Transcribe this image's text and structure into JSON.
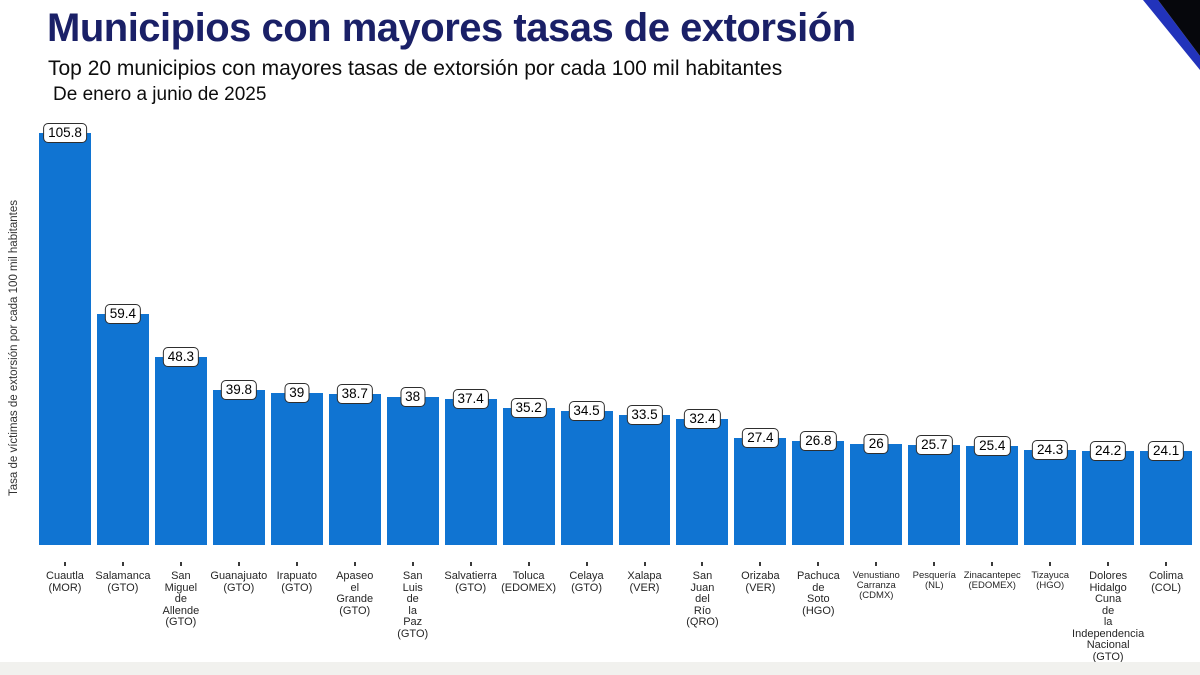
{
  "header": {
    "title": "Municipios con mayores tasas de extorsión",
    "subtitle": "Top 20 municipios con mayores tasas de extorsión por cada 100 mil habitantes",
    "period": "De enero a junio de 2025"
  },
  "colors": {
    "title_navy": "#1a2067",
    "bar_blue": "#1074d2",
    "corner_black": "#06070c",
    "corner_blue": "#2233bb",
    "tick_text": "#262626",
    "bottom_strip": "#f1f1ee"
  },
  "chart_data": {
    "type": "bar",
    "title": "Municipios con mayores tasas de extorsión",
    "subtitle": "Top 20 municipios con mayores tasas de extorsión por cada 100 mil habitantes",
    "period": "De enero a junio de 2025",
    "xlabel": "",
    "ylabel": "Tasa de víctimas de extorsión por cada 100 mil habitantes",
    "ylim": [
      0,
      110
    ],
    "grid": false,
    "legend": false,
    "bar_color": "#1074d2",
    "categories": [
      "Cuautla (MOR)",
      "Salamanca (GTO)",
      "San Miguel de Allende (GTO)",
      "Guanajuato (GTO)",
      "Irapuato (GTO)",
      "Apaseo el Grande (GTO)",
      "San Luis de la Paz (GTO)",
      "Salvatierra (GTO)",
      "Toluca (EDOMEX)",
      "Celaya (GTO)",
      "Xalapa (VER)",
      "San Juan del Río (QRO)",
      "Orizaba (VER)",
      "Pachuca de Soto (HGO)",
      "Venustiano Carranza (CDMX)",
      "Pesquería (NL)",
      "Zinacantepec (EDOMEX)",
      "Tizayuca (HGO)",
      "Dolores Hidalgo Cuna de la Independencia Nacional (GTO)",
      "Colima (COL)"
    ],
    "tick_labels": [
      "Cuautla\n(MOR)",
      "Salamanca\n(GTO)",
      "San\nMiguel\nde\nAllende\n(GTO)",
      "Guanajuato\n(GTO)",
      "Irapuato\n(GTO)",
      "Apaseo\nel\nGrande\n(GTO)",
      "San\nLuis\nde\nla\nPaz\n(GTO)",
      "Salvatierra\n(GTO)",
      "Toluca\n(EDOMEX)",
      "Celaya\n(GTO)",
      "Xalapa\n(VER)",
      "San\nJuan\ndel\nRío\n(QRO)",
      "Orizaba\n(VER)",
      "Pachuca\nde\nSoto\n(HGO)",
      "Venustiano\nCarranza\n(CDMX)",
      "Pesquería\n(NL)",
      "Zinacantepec\n(EDOMEX)",
      "Tizayuca\n(HGO)",
      "Dolores\nHidalgo\nCuna\nde\nla\nIndependencia\nNacional\n(GTO)",
      "Colima\n(COL)"
    ],
    "small_font_tick_indices": [
      14,
      15,
      16,
      17
    ],
    "values": [
      105.8,
      59.4,
      48.3,
      39.8,
      39,
      38.7,
      38,
      37.4,
      35.2,
      34.5,
      33.5,
      32.4,
      27.4,
      26.8,
      26,
      25.7,
      25.4,
      24.3,
      24.2,
      24.1
    ],
    "value_labels": [
      "105.8",
      "59.4",
      "48.3",
      "39.8",
      "39",
      "38.7",
      "38",
      "37.4",
      "35.2",
      "34.5",
      "33.5",
      "32.4",
      "27.4",
      "26.8",
      "26",
      "25.7",
      "25.4",
      "24.3",
      "24.2",
      "24.1"
    ]
  }
}
